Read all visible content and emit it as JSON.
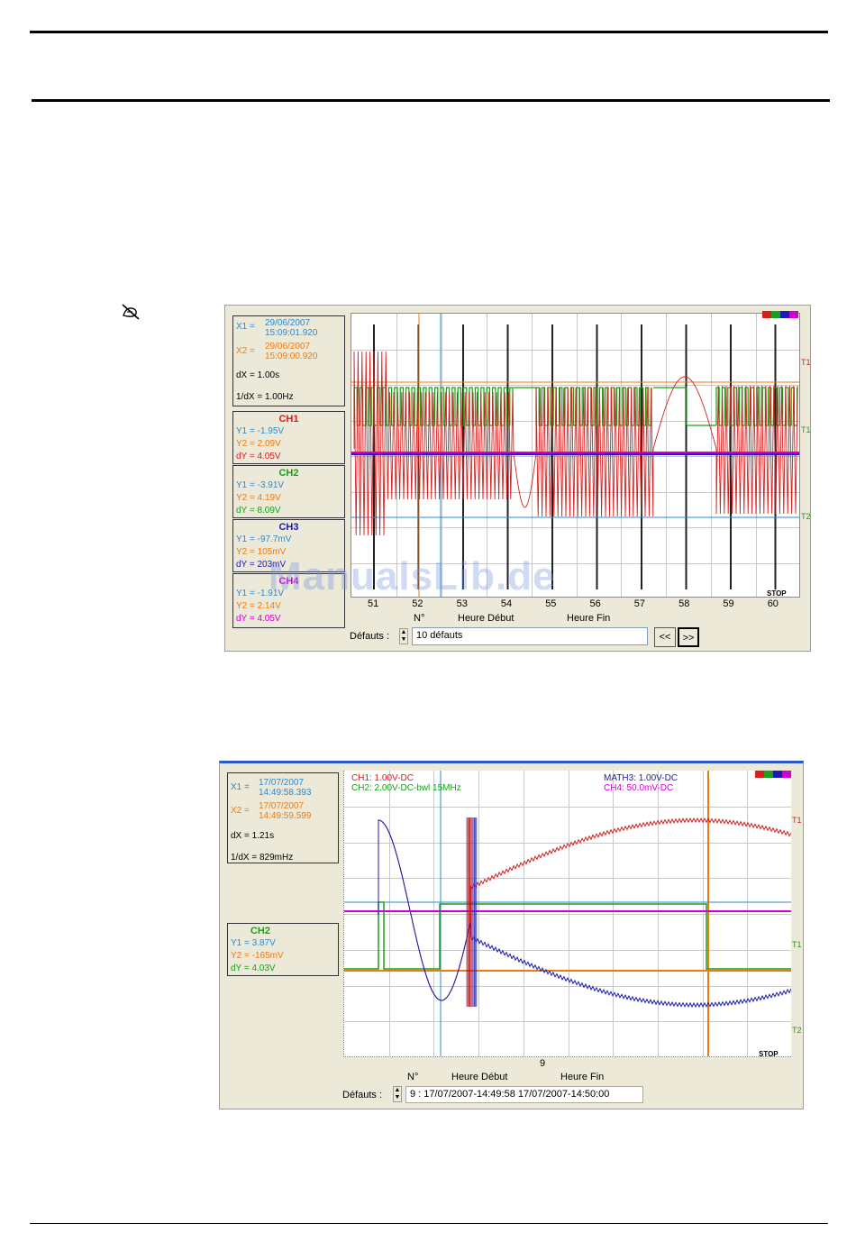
{
  "colors": {
    "ch1": "#d42020",
    "ch2": "#1aa01a",
    "ch3": "#1a1ab4",
    "ch4": "#d000d0",
    "cursor1": "#2a8ad0",
    "cursor2": "#f07a10"
  },
  "page_icon": "hand-off-icon",
  "s1": {
    "cursor": {
      "x1_label": "X1 =",
      "x1_date": "29/06/2007",
      "x1_time": "15:09:01.920",
      "x2_label": "X2 =",
      "x2_date": "29/06/2007",
      "x2_time": "15:09:00.920",
      "dx": "dX = 1.00s",
      "inv_dx": "1/dX = 1.00Hz"
    },
    "channels": [
      {
        "name": "CH1",
        "y1": "Y1 = -1.95V",
        "y2": "Y2 = 2.09V",
        "dy": "dY = 4.05V"
      },
      {
        "name": "CH2",
        "y1": "Y1 = -3.91V",
        "y2": "Y2 = 4.19V",
        "dy": "dY = 8.09V"
      },
      {
        "name": "CH3",
        "y1": "Y1 = -97.7mV",
        "y2": "Y2 = 105mV",
        "dy": "dY = 203mV"
      },
      {
        "name": "CH4",
        "y1": "Y1 = -1.91V",
        "y2": "Y2 = 2.14V",
        "dy": "dY = 4.05V"
      }
    ],
    "x_ticks": [
      "51",
      "52",
      "53",
      "54",
      "55",
      "56",
      "57",
      "58",
      "59",
      "60"
    ],
    "col_n": "N°",
    "col_start": "Heure Début",
    "col_end": "Heure Fin",
    "stop": "STOP",
    "trig_marks": [
      "T1",
      "T1",
      "T2"
    ],
    "defauts_label": "Défauts :",
    "defauts_value": "10 défauts",
    "prev": "<<",
    "next": ">>",
    "watermark": "ManualsLib.de"
  },
  "s2": {
    "cursor": {
      "x1_label": "X1 =",
      "x1_date": "17/07/2007",
      "x1_time": "14:49:58.393",
      "x2_label": "X2 =",
      "x2_date": "17/07/2007",
      "x2_time": "14:49:59.599",
      "dx": "dX = 1.21s",
      "inv_dx": "1/dX = 829mHz"
    },
    "ch2": {
      "name": "CH2",
      "y1": "Y1 = 3.87V",
      "y2": "Y2 = -165mV",
      "dy": "dY = 4.03V"
    },
    "legend": {
      "ch1": "CH1: 1.00V-DC",
      "ch2": "CH2: 2.00V-DC-bwl 15MHz",
      "math3": "MATH3: 1.00V-DC",
      "ch4": "CH4: 50.0mV-DC"
    },
    "x_tick": "9",
    "stop": "STOP",
    "trig_marks": [
      "T1",
      "T1",
      "T2"
    ],
    "col_n": "N°",
    "col_start": "Heure Début",
    "col_end": "Heure Fin",
    "defauts_label": "Défauts :",
    "row": "9 :  17/07/2007-14:49:58     17/07/2007-14:50:00"
  }
}
